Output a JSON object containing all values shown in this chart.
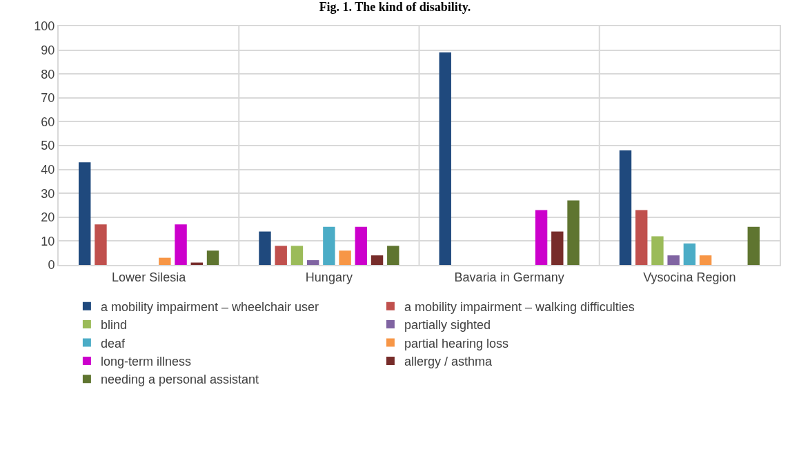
{
  "chart_data": {
    "type": "bar",
    "title": "Fig. 1. The kind of disability.",
    "categories": [
      "Lower Silesia",
      "Hungary",
      "Bavaria in Germany",
      "Vysocina Region"
    ],
    "series": [
      {
        "name": "a mobility impairment – wheelchair user",
        "color": "#1f497d",
        "values": [
          43,
          14,
          89,
          48
        ]
      },
      {
        "name": "a mobility impairment – walking difficulties",
        "color": "#c0504d",
        "values": [
          17,
          8,
          null,
          23
        ]
      },
      {
        "name": "blind",
        "color": "#9bbb59",
        "values": [
          null,
          8,
          null,
          12
        ]
      },
      {
        "name": "partially sighted",
        "color": "#8064a2",
        "values": [
          null,
          2,
          null,
          4
        ]
      },
      {
        "name": "deaf",
        "color": "#4bacc6",
        "values": [
          null,
          16,
          null,
          9
        ]
      },
      {
        "name": "partial hearing loss",
        "color": "#f79646",
        "values": [
          3,
          6,
          null,
          4
        ]
      },
      {
        "name": "long-term illness",
        "color": "#cc00cc",
        "values": [
          17,
          16,
          23,
          null
        ]
      },
      {
        "name": "allergy / asthma",
        "color": "#772c2a",
        "values": [
          1,
          4,
          14,
          null
        ]
      },
      {
        "name": "needing a personal assistant",
        "color": "#5f7530",
        "values": [
          6,
          8,
          27,
          16
        ]
      }
    ],
    "ylim": [
      0,
      100
    ],
    "yticks": [
      0,
      10,
      20,
      30,
      40,
      50,
      60,
      70,
      80,
      90,
      100
    ],
    "grid": true,
    "legend": "bottom"
  }
}
